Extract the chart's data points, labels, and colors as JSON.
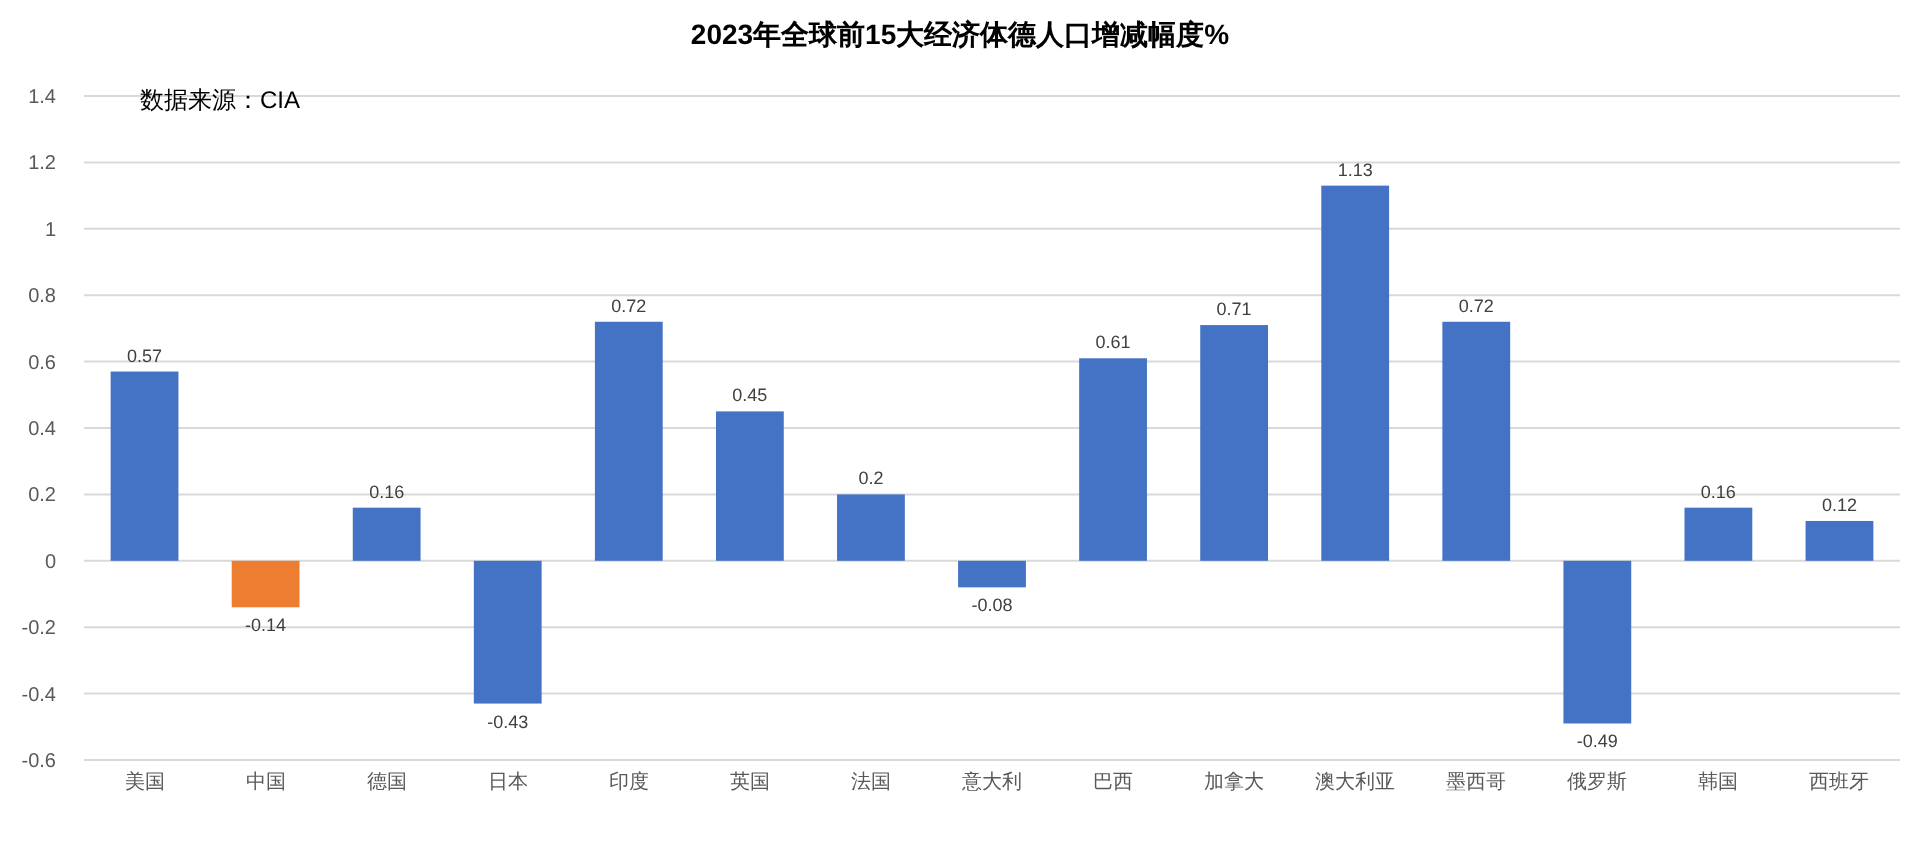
{
  "chart_data": {
    "type": "bar",
    "title": "2023年全球前15大经济体德人口增减幅度%",
    "categories": [
      "美国",
      "中国",
      "德国",
      "日本",
      "印度",
      "英国",
      "法国",
      "意大利",
      "巴西",
      "加拿大",
      "澳大利亚",
      "墨西哥",
      "俄罗斯",
      "韩国",
      "西班牙"
    ],
    "values": [
      0.57,
      -0.14,
      0.16,
      -0.43,
      0.72,
      0.45,
      0.2,
      -0.08,
      0.61,
      0.71,
      1.13,
      0.72,
      -0.49,
      0.16,
      0.12
    ],
    "colors": [
      "#4472c4",
      "#ed7d31",
      "#4472c4",
      "#4472c4",
      "#4472c4",
      "#4472c4",
      "#4472c4",
      "#4472c4",
      "#4472c4",
      "#4472c4",
      "#4472c4",
      "#4472c4",
      "#4472c4",
      "#4472c4",
      "#4472c4"
    ],
    "ylim": [
      -0.6,
      1.4
    ],
    "yticks": [
      -0.6,
      -0.4,
      -0.2,
      0,
      0.2,
      0.4,
      0.6,
      0.8,
      1,
      1.2,
      1.4
    ],
    "grid": "y",
    "data_labels": true,
    "annotations": [
      "数据来源：CIA"
    ]
  }
}
